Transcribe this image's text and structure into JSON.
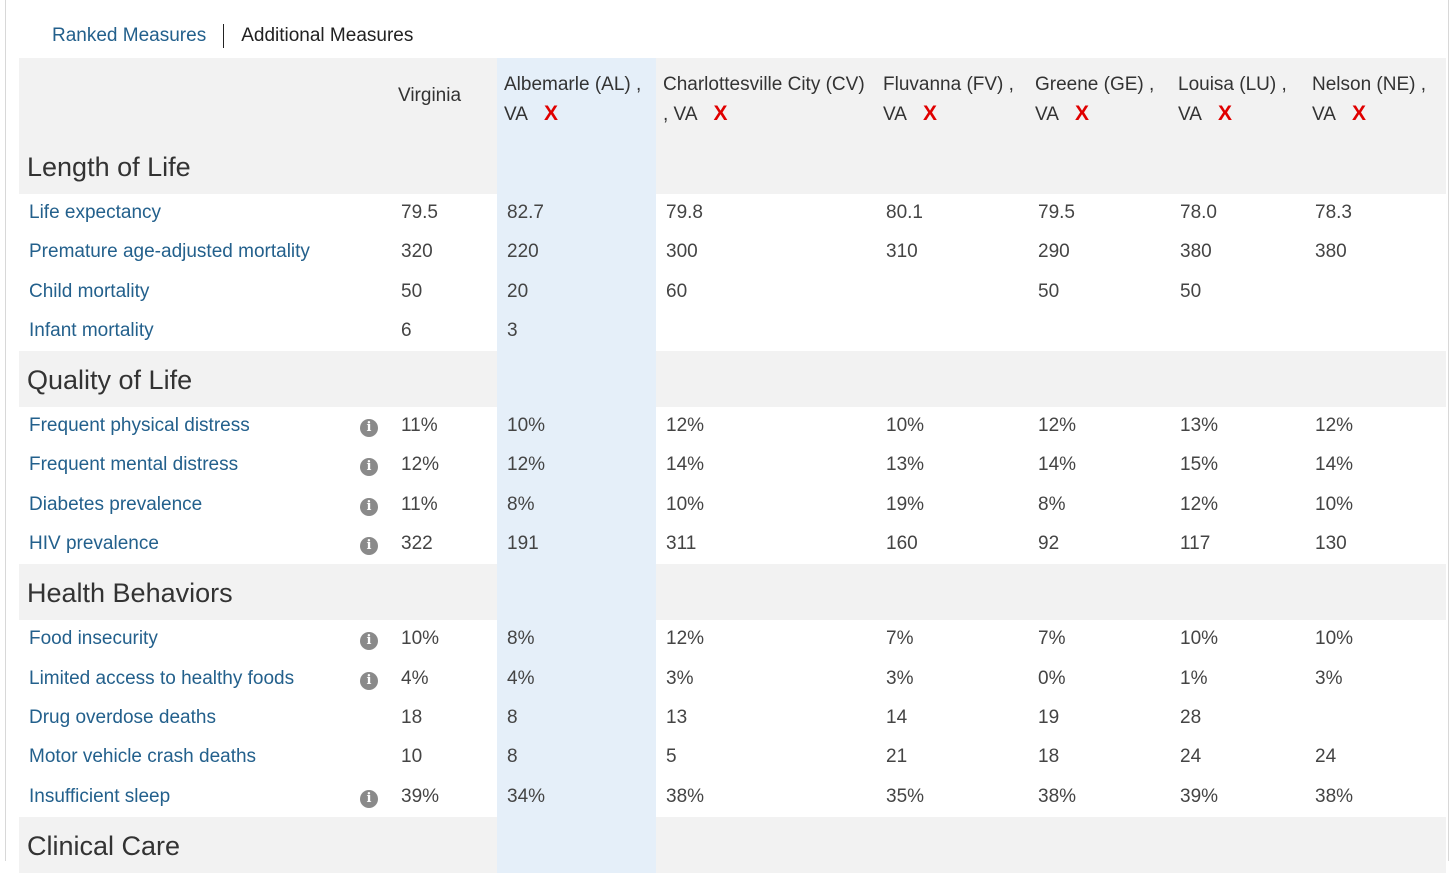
{
  "tabs": {
    "ranked": "Ranked Measures",
    "additional": "Additional Measures"
  },
  "columns": {
    "virginia": "Virginia",
    "counties": [
      {
        "line1": "Albemarle (AL) ,",
        "line2": "VA"
      },
      {
        "line1": "Charlottesville City (CV)",
        "line2": ", VA"
      },
      {
        "line1": "Fluvanna (FV) ,",
        "line2": "VA"
      },
      {
        "line1": "Greene (GE) ,",
        "line2": "VA"
      },
      {
        "line1": "Louisa (LU) ,",
        "line2": "VA"
      },
      {
        "line1": "Nelson (NE) ,",
        "line2": "VA"
      }
    ],
    "remove_symbol": "X"
  },
  "info_symbol": "i",
  "sections": [
    {
      "title": "Length of Life",
      "rows": [
        {
          "measure": "Life expectancy",
          "info": false,
          "values": [
            "79.5",
            "82.7",
            "79.8",
            "80.1",
            "79.5",
            "78.0",
            "78.3"
          ]
        },
        {
          "measure": "Premature age-adjusted mortality",
          "info": false,
          "values": [
            "320",
            "220",
            "300",
            "310",
            "290",
            "380",
            "380"
          ]
        },
        {
          "measure": "Child mortality",
          "info": false,
          "values": [
            "50",
            "20",
            "60",
            "",
            "50",
            "50",
            ""
          ]
        },
        {
          "measure": "Infant mortality",
          "info": false,
          "values": [
            "6",
            "3",
            "",
            "",
            "",
            "",
            ""
          ]
        }
      ]
    },
    {
      "title": "Quality of Life",
      "rows": [
        {
          "measure": "Frequent physical distress",
          "info": true,
          "values": [
            "11%",
            "10%",
            "12%",
            "10%",
            "12%",
            "13%",
            "12%"
          ]
        },
        {
          "measure": "Frequent mental distress",
          "info": true,
          "values": [
            "12%",
            "12%",
            "14%",
            "13%",
            "14%",
            "15%",
            "14%"
          ]
        },
        {
          "measure": "Diabetes prevalence",
          "info": true,
          "values": [
            "11%",
            "8%",
            "10%",
            "19%",
            "8%",
            "12%",
            "10%"
          ]
        },
        {
          "measure": "HIV prevalence",
          "info": true,
          "values": [
            "322",
            "191",
            "311",
            "160",
            "92",
            "117",
            "130"
          ]
        }
      ]
    },
    {
      "title": "Health Behaviors",
      "rows": [
        {
          "measure": "Food insecurity",
          "info": true,
          "values": [
            "10%",
            "8%",
            "12%",
            "7%",
            "7%",
            "10%",
            "10%"
          ]
        },
        {
          "measure": "Limited access to healthy foods",
          "info": true,
          "values": [
            "4%",
            "4%",
            "3%",
            "3%",
            "0%",
            "1%",
            "3%"
          ]
        },
        {
          "measure": "Drug overdose deaths",
          "info": false,
          "values": [
            "18",
            "8",
            "13",
            "14",
            "19",
            "28",
            ""
          ]
        },
        {
          "measure": "Motor vehicle crash deaths",
          "info": false,
          "values": [
            "10",
            "8",
            "5",
            "21",
            "18",
            "24",
            "24"
          ]
        },
        {
          "measure": "Insufficient sleep",
          "info": true,
          "values": [
            "39%",
            "34%",
            "38%",
            "35%",
            "38%",
            "39%",
            "38%"
          ]
        }
      ]
    },
    {
      "title": "Clinical Care",
      "rows": []
    }
  ]
}
